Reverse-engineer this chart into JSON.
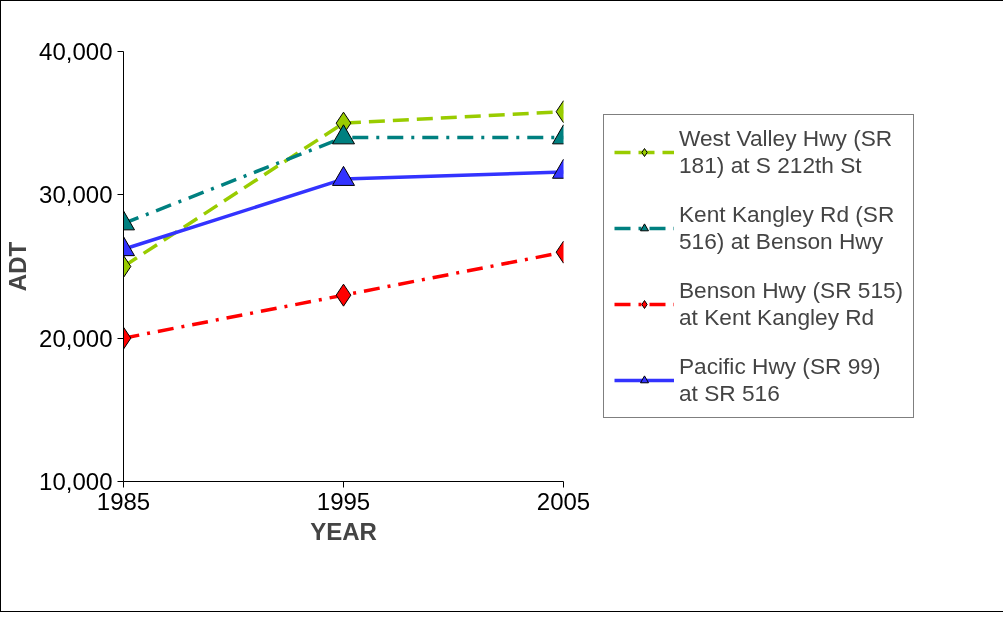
{
  "chart_data": {
    "type": "line",
    "xlabel": "YEAR",
    "ylabel": "ADT",
    "x": [
      1985,
      1995,
      2005
    ],
    "xlim": [
      1985,
      2005
    ],
    "xticks": [
      1985,
      1995,
      2005
    ],
    "ylim": [
      10000,
      40000
    ],
    "yticks": [
      {
        "value": 10000,
        "label": "10,000"
      },
      {
        "value": 20000,
        "label": "20,000"
      },
      {
        "value": 30000,
        "label": "30,000"
      },
      {
        "value": 40000,
        "label": "40,000"
      }
    ],
    "grid": false,
    "legend": "right",
    "series": [
      {
        "name": "West Valley Hwy (SR 181) at S 212th St",
        "color": "#99cc00",
        "marker": "diamond",
        "line_style": "dashed",
        "values": [
          25000,
          35000,
          35800
        ]
      },
      {
        "name": "Kent Kangley Rd (SR 516) at Benson Hwy",
        "color": "#008080",
        "marker": "triangle",
        "line_style": "dashdot",
        "values": [
          28000,
          34000,
          34000
        ]
      },
      {
        "name": "Benson Hwy (SR 515) at Kent Kangley Rd",
        "color": "#ff0000",
        "marker": "diamond",
        "line_style": "dashdot",
        "values": [
          20000,
          23000,
          26000
        ]
      },
      {
        "name": "Pacific Hwy (SR 99) at SR 516",
        "color": "#3333ff",
        "marker": "triangle",
        "line_style": "solid",
        "values": [
          26200,
          31100,
          31600
        ]
      }
    ]
  }
}
